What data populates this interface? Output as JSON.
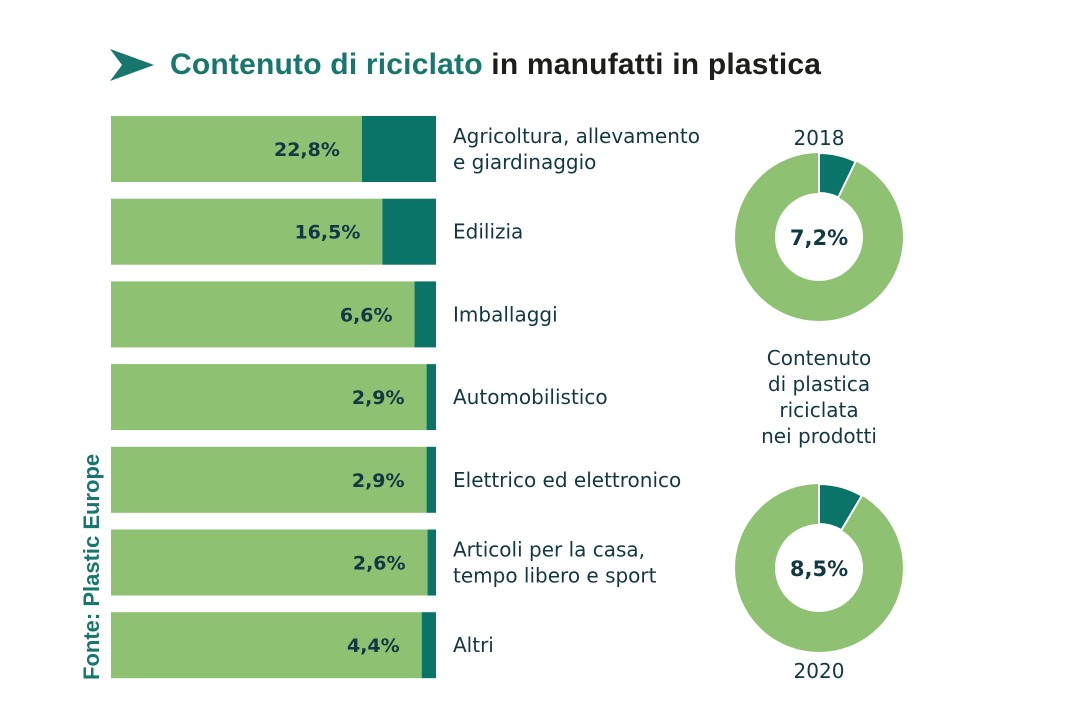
{
  "title": {
    "accent": "Contenuto di riciclato",
    "rest": "in manufatti in plastica"
  },
  "source": "Fonte: Plastic Europe",
  "colors": {
    "light_green": "#8fc173",
    "dark_teal": "#0a7468",
    "title_teal": "#17766e",
    "text_dark": "#123843",
    "title_black": "#1d1d1b"
  },
  "icons": {
    "title_marker": "arrowhead-icon"
  },
  "chart_data": [
    {
      "type": "bar",
      "orientation": "horizontal",
      "stacked_to": 100,
      "unit": "%",
      "categories": [
        [
          "Agricoltura, allevamento",
          "e giardinaggio"
        ],
        [
          "Edilizia"
        ],
        [
          "Imballaggi"
        ],
        [
          "Automobilistico"
        ],
        [
          "Elettrico ed elettronico"
        ],
        [
          "Articoli per la casa,",
          "tempo libero e sport"
        ],
        [
          "Altri"
        ]
      ],
      "values": [
        22.8,
        16.5,
        6.6,
        2.9,
        2.9,
        2.6,
        4.4
      ],
      "value_labels": [
        "22,8%",
        "16,5%",
        "6,6%",
        "2,9%",
        "2,9%",
        "2,6%",
        "4,4%"
      ]
    },
    {
      "type": "pie",
      "title": "2018",
      "values": [
        7.2,
        92.8
      ],
      "center_label": "7,2%"
    },
    {
      "type": "pie",
      "title": "2020",
      "values": [
        8.5,
        91.5
      ],
      "center_label": "8,5%"
    }
  ],
  "donut_caption": [
    "Contenuto",
    "di plastica",
    "riciclata",
    "nei prodotti"
  ]
}
